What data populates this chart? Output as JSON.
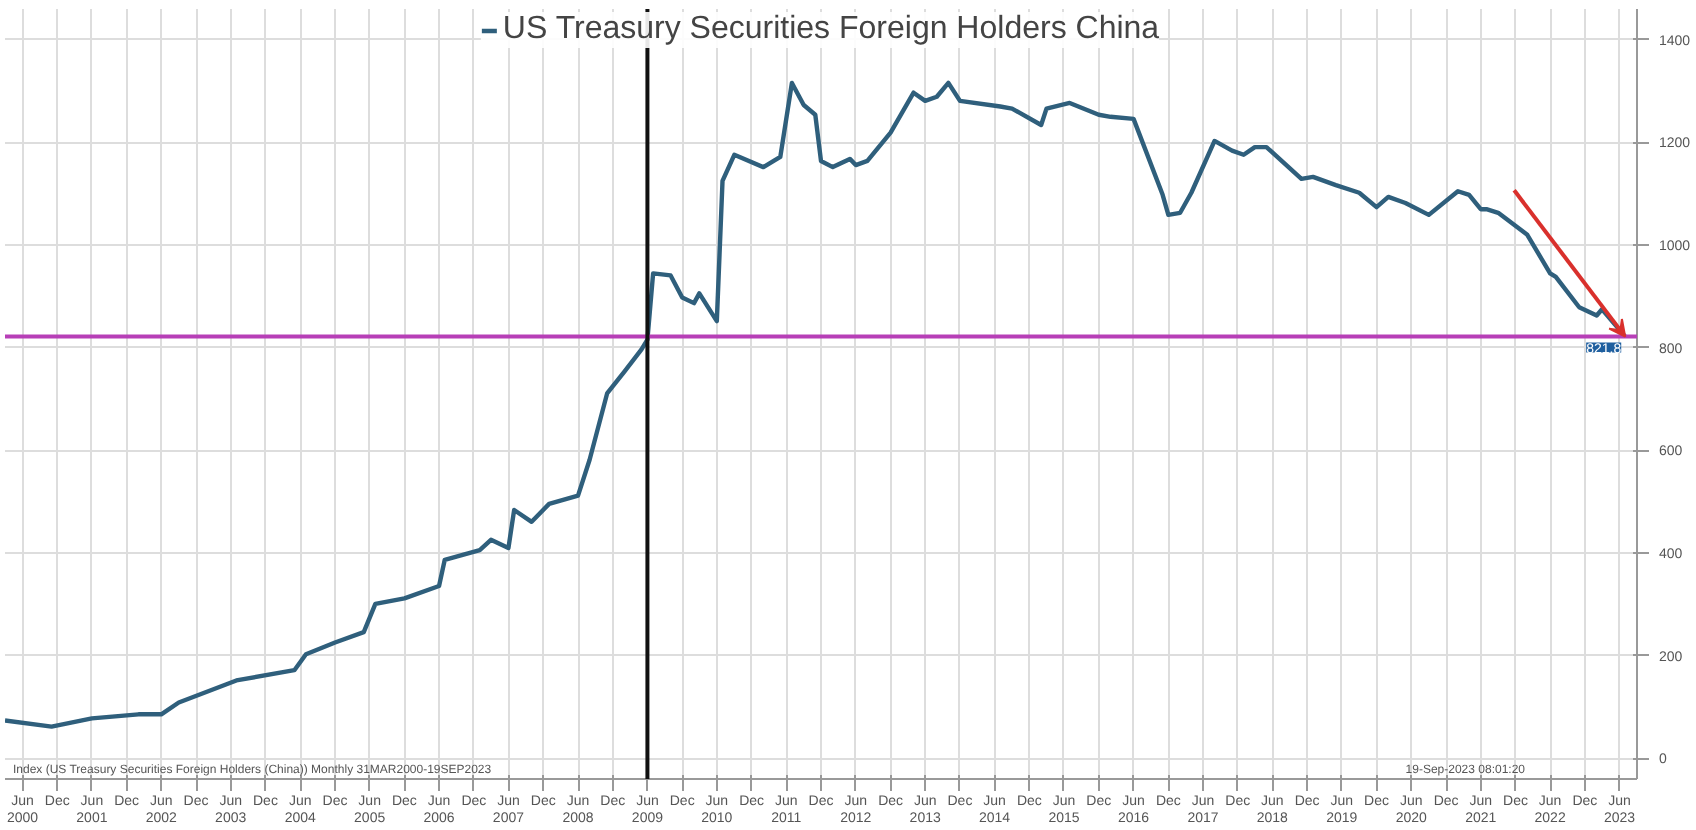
{
  "chart_data": {
    "type": "line",
    "x": [
      "2000-03",
      "2000-11",
      "2001-06",
      "2002-02",
      "2002-06",
      "2002-09",
      "2003-07",
      "2004-05",
      "2004-07",
      "2004-12",
      "2005-05",
      "2005-07",
      "2005-12",
      "2006-06",
      "2006-07",
      "2007-01",
      "2007-03",
      "2007-06",
      "2007-07",
      "2007-10",
      "2008-01",
      "2008-06",
      "2008-08",
      "2008-11",
      "2009-02",
      "2009-05",
      "2009-06",
      "2009-07",
      "2009-10",
      "2009-12",
      "2010-02",
      "2010-03",
      "2010-06",
      "2010-07",
      "2010-09",
      "2011-02",
      "2011-05",
      "2011-07",
      "2011-09",
      "2011-11",
      "2011-12",
      "2012-02",
      "2012-05",
      "2012-06",
      "2012-08",
      "2012-12",
      "2013-04",
      "2013-06",
      "2013-08",
      "2013-10",
      "2013-12",
      "2014-07",
      "2014-09",
      "2015-02",
      "2015-03",
      "2015-07",
      "2015-12",
      "2016-02",
      "2016-06",
      "2016-11",
      "2016-12",
      "2017-02",
      "2017-04",
      "2017-08",
      "2017-11",
      "2018-01",
      "2018-03",
      "2018-05",
      "2018-11",
      "2019-01",
      "2019-05",
      "2019-09",
      "2019-12",
      "2020-02",
      "2020-05",
      "2020-09",
      "2021-02",
      "2021-04",
      "2021-06",
      "2021-07",
      "2021-09",
      "2022-02",
      "2022-06",
      "2022-07",
      "2022-11",
      "2023-02",
      "2023-03",
      "2023-07"
    ],
    "series": [
      {
        "name": "US Treasury Securities Foreign Holders China",
        "color": "#2f5f7c",
        "values": [
          74,
          62,
          78,
          86,
          86,
          109,
          152,
          172,
          203,
          226,
          246,
          301,
          312,
          336,
          387,
          406,
          426,
          410,
          484,
          461,
          496,
          512,
          582,
          711,
          754,
          797,
          816,
          945,
          941,
          898,
          887,
          906,
          852,
          1125,
          1176,
          1152,
          1172,
          1316,
          1273,
          1254,
          1164,
          1152,
          1168,
          1156,
          1164,
          1219,
          1297,
          1281,
          1289,
          1316,
          1281,
          1270,
          1266,
          1234,
          1266,
          1277,
          1254,
          1250,
          1246,
          1098,
          1059,
          1063,
          1102,
          1203,
          1184,
          1176,
          1191,
          1191,
          1129,
          1133,
          1117,
          1102,
          1074,
          1094,
          1082,
          1059,
          1105,
          1098,
          1070,
          1070,
          1063,
          1020,
          945,
          938,
          879,
          863,
          875,
          821.8
        ],
        "value_labels": [
          null,
          null,
          null,
          null,
          null,
          null,
          null,
          null,
          null,
          null,
          null,
          null,
          null,
          null,
          null,
          null,
          null,
          null,
          null,
          null,
          null,
          null,
          null,
          null,
          null,
          null,
          null,
          null,
          null,
          null,
          null,
          null,
          null,
          null,
          null,
          null,
          null,
          null,
          null,
          null,
          null,
          null,
          null,
          null,
          null,
          null,
          null,
          null,
          null,
          null,
          null,
          null,
          null,
          null,
          null,
          null,
          null,
          null,
          null,
          null,
          null,
          null,
          null,
          null,
          null,
          null,
          null,
          null,
          null,
          null,
          null,
          null,
          null,
          null,
          null,
          null,
          null,
          null,
          null,
          null,
          null,
          null,
          null,
          null,
          null,
          null,
          null,
          "821.8"
        ]
      }
    ],
    "xlim": [
      "2000-03",
      "2023-09"
    ],
    "xticks": [
      {
        "value": "2000-06",
        "label": "Jun\n2000"
      },
      {
        "value": "2000-12",
        "label": "Dec"
      },
      {
        "value": "2001-06",
        "label": "Jun\n2001"
      },
      {
        "value": "2001-12",
        "label": "Dec"
      },
      {
        "value": "2002-06",
        "label": "Jun\n2002"
      },
      {
        "value": "2002-12",
        "label": "Dec"
      },
      {
        "value": "2003-06",
        "label": "Jun\n2003"
      },
      {
        "value": "2003-12",
        "label": "Dec"
      },
      {
        "value": "2004-06",
        "label": "Jun\n2004"
      },
      {
        "value": "2004-12",
        "label": "Dec"
      },
      {
        "value": "2005-06",
        "label": "Jun\n2005"
      },
      {
        "value": "2005-12",
        "label": "Dec"
      },
      {
        "value": "2006-06",
        "label": "Jun\n2006"
      },
      {
        "value": "2006-12",
        "label": "Dec"
      },
      {
        "value": "2007-06",
        "label": "Jun\n2007"
      },
      {
        "value": "2007-12",
        "label": "Dec"
      },
      {
        "value": "2008-06",
        "label": "Jun\n2008"
      },
      {
        "value": "2008-12",
        "label": "Dec"
      },
      {
        "value": "2009-06",
        "label": "Jun\n2009"
      },
      {
        "value": "2009-12",
        "label": "Dec"
      },
      {
        "value": "2010-06",
        "label": "Jun\n2010"
      },
      {
        "value": "2010-12",
        "label": "Dec"
      },
      {
        "value": "2011-06",
        "label": "Jun\n2011"
      },
      {
        "value": "2011-12",
        "label": "Dec"
      },
      {
        "value": "2012-06",
        "label": "Jun\n2012"
      },
      {
        "value": "2012-12",
        "label": "Dec"
      },
      {
        "value": "2013-06",
        "label": "Jun\n2013"
      },
      {
        "value": "2013-12",
        "label": "Dec"
      },
      {
        "value": "2014-06",
        "label": "Jun\n2014"
      },
      {
        "value": "2014-12",
        "label": "Dec"
      },
      {
        "value": "2015-06",
        "label": "Jun\n2015"
      },
      {
        "value": "2015-12",
        "label": "Dec"
      },
      {
        "value": "2016-06",
        "label": "Jun\n2016"
      },
      {
        "value": "2016-12",
        "label": "Dec"
      },
      {
        "value": "2017-06",
        "label": "Jun\n2017"
      },
      {
        "value": "2017-12",
        "label": "Dec"
      },
      {
        "value": "2018-06",
        "label": "Jun\n2018"
      },
      {
        "value": "2018-12",
        "label": "Dec"
      },
      {
        "value": "2019-06",
        "label": "Jun\n2019"
      },
      {
        "value": "2019-12",
        "label": "Dec"
      },
      {
        "value": "2020-06",
        "label": "Jun\n2020"
      },
      {
        "value": "2020-12",
        "label": "Dec"
      },
      {
        "value": "2021-06",
        "label": "Jun\n2021"
      },
      {
        "value": "2021-12",
        "label": "Dec"
      },
      {
        "value": "2022-06",
        "label": "Jun\n2022"
      },
      {
        "value": "2022-12",
        "label": "Dec"
      },
      {
        "value": "2023-06",
        "label": "Jun\n2023"
      }
    ],
    "ylim": [
      -40,
      1460
    ],
    "yticks": [
      0,
      200,
      400,
      600,
      800,
      1000,
      1200,
      1400
    ],
    "grid": true,
    "legend": "top",
    "ref_lines": [
      {
        "axis": "y",
        "value": 821.8,
        "color": "#b73fb7"
      },
      {
        "axis": "x",
        "value": "2009-06",
        "color": "#111111"
      }
    ],
    "annotations": [
      "Index (US Treasury Securities Foreign Holders (China)) Monthly 31MAR2000-19SEP2023",
      "19-Sep-2023 08:01:20"
    ]
  }
}
